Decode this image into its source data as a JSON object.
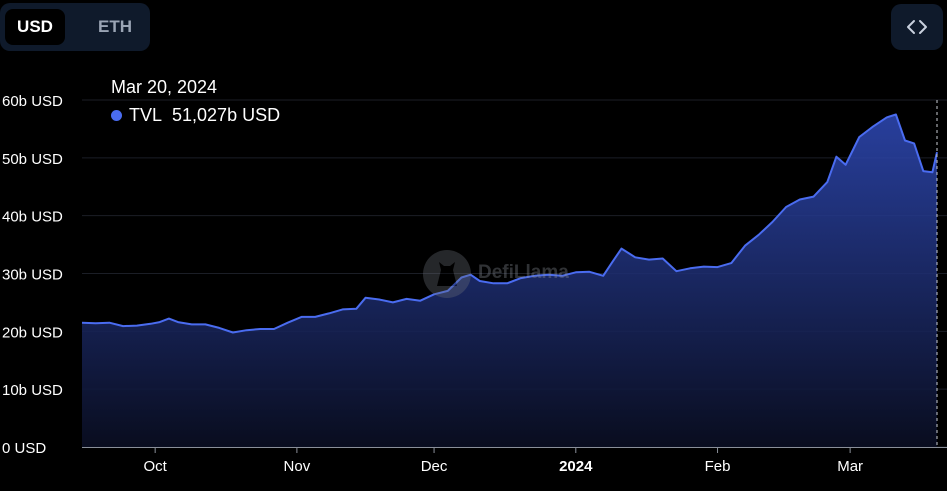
{
  "toggle": {
    "usd_label": "USD",
    "eth_label": "ETH"
  },
  "embed": {
    "icon": "code-icon"
  },
  "tooltip": {
    "date": "Mar 20, 2024",
    "series_label": "TVL",
    "value": "51,027b USD"
  },
  "watermark": {
    "text": "DefiLlama"
  },
  "colors": {
    "line": "#4a6cf0",
    "background": "#000000",
    "panel": "#0f1a2b"
  },
  "chart_data": {
    "type": "area",
    "title": "",
    "xlabel": "",
    "ylabel": "",
    "ylim": [
      0,
      60
    ],
    "y_ticks": [
      "0 USD",
      "10b USD",
      "20b USD",
      "30b USD",
      "40b USD",
      "50b USD",
      "60b USD"
    ],
    "x_ticks": [
      {
        "label": "Oct",
        "date": "2023-10-01",
        "bold": false
      },
      {
        "label": "Nov",
        "date": "2023-11-01",
        "bold": false
      },
      {
        "label": "Dec",
        "date": "2023-12-01",
        "bold": false
      },
      {
        "label": "2024",
        "date": "2024-01-01",
        "bold": true
      },
      {
        "label": "Feb",
        "date": "2024-02-01",
        "bold": false
      },
      {
        "label": "Mar",
        "date": "2024-03-01",
        "bold": false
      }
    ],
    "xlim": [
      "2023-09-15",
      "2024-03-20"
    ],
    "grid": true,
    "series": [
      {
        "name": "TVL",
        "unit": "b USD",
        "points": [
          [
            "2023-09-15",
            21.5
          ],
          [
            "2023-09-18",
            21.4
          ],
          [
            "2023-09-21",
            21.5
          ],
          [
            "2023-09-24",
            20.9
          ],
          [
            "2023-09-27",
            21.0
          ],
          [
            "2023-09-30",
            21.3
          ],
          [
            "2023-10-02",
            21.6
          ],
          [
            "2023-10-04",
            22.2
          ],
          [
            "2023-10-06",
            21.6
          ],
          [
            "2023-10-09",
            21.2
          ],
          [
            "2023-10-12",
            21.2
          ],
          [
            "2023-10-15",
            20.6
          ],
          [
            "2023-10-18",
            19.8
          ],
          [
            "2023-10-21",
            20.2
          ],
          [
            "2023-10-24",
            20.4
          ],
          [
            "2023-10-27",
            20.4
          ],
          [
            "2023-10-30",
            21.5
          ],
          [
            "2023-11-02",
            22.5
          ],
          [
            "2023-11-05",
            22.5
          ],
          [
            "2023-11-08",
            23.1
          ],
          [
            "2023-11-11",
            23.8
          ],
          [
            "2023-11-14",
            23.9
          ],
          [
            "2023-11-16",
            25.8
          ],
          [
            "2023-11-19",
            25.5
          ],
          [
            "2023-11-22",
            25.0
          ],
          [
            "2023-11-25",
            25.6
          ],
          [
            "2023-11-28",
            25.3
          ],
          [
            "2023-12-01",
            26.4
          ],
          [
            "2023-12-04",
            27.0
          ],
          [
            "2023-12-07",
            29.3
          ],
          [
            "2023-12-09",
            29.8
          ],
          [
            "2023-12-11",
            28.7
          ],
          [
            "2023-12-14",
            28.3
          ],
          [
            "2023-12-17",
            28.3
          ],
          [
            "2023-12-20",
            29.2
          ],
          [
            "2023-12-23",
            29.6
          ],
          [
            "2023-12-26",
            29.8
          ],
          [
            "2023-12-29",
            29.6
          ],
          [
            "2024-01-01",
            30.2
          ],
          [
            "2024-01-04",
            30.3
          ],
          [
            "2024-01-07",
            29.6
          ],
          [
            "2024-01-09",
            32.0
          ],
          [
            "2024-01-11",
            34.3
          ],
          [
            "2024-01-14",
            32.8
          ],
          [
            "2024-01-17",
            32.4
          ],
          [
            "2024-01-20",
            32.6
          ],
          [
            "2024-01-23",
            30.4
          ],
          [
            "2024-01-26",
            30.9
          ],
          [
            "2024-01-29",
            31.2
          ],
          [
            "2024-02-01",
            31.1
          ],
          [
            "2024-02-04",
            31.8
          ],
          [
            "2024-02-07",
            34.8
          ],
          [
            "2024-02-10",
            36.7
          ],
          [
            "2024-02-13",
            38.9
          ],
          [
            "2024-02-16",
            41.5
          ],
          [
            "2024-02-19",
            42.8
          ],
          [
            "2024-02-22",
            43.3
          ],
          [
            "2024-02-25",
            45.8
          ],
          [
            "2024-02-27",
            50.2
          ],
          [
            "2024-02-29",
            48.8
          ],
          [
            "2024-03-03",
            53.6
          ],
          [
            "2024-03-06",
            55.4
          ],
          [
            "2024-03-09",
            57.0
          ],
          [
            "2024-03-11",
            57.5
          ],
          [
            "2024-03-13",
            53.0
          ],
          [
            "2024-03-15",
            52.5
          ],
          [
            "2024-03-17",
            47.7
          ],
          [
            "2024-03-19",
            47.5
          ],
          [
            "2024-03-20",
            51.0
          ]
        ]
      }
    ]
  }
}
